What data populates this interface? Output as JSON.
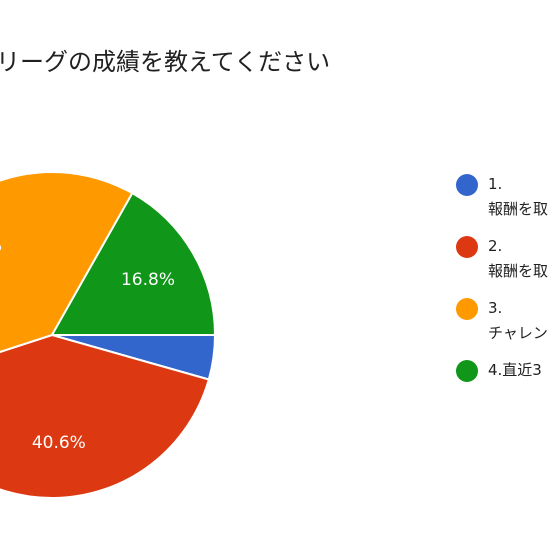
{
  "chart_data": {
    "type": "pie",
    "title": "リーグの成績を教えてください",
    "slices": [
      {
        "label": "1.\n報酬を取",
        "value": 4.4,
        "display_label": "",
        "color": "#3366cc"
      },
      {
        "label": "2.\n報酬を取",
        "value": 40.6,
        "display_label": "40.6%",
        "color": "#dc3912"
      },
      {
        "label": "3.\nチャレン",
        "value": 38.2,
        "display_label": "%",
        "color": "#ff9900"
      },
      {
        "label": "4.直近3",
        "value": 16.8,
        "display_label": "16.8%",
        "color": "#109618"
      }
    ],
    "legend_position": "right"
  }
}
